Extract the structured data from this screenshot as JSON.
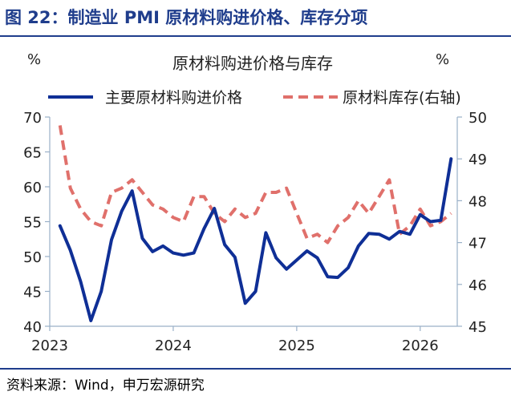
{
  "figure": {
    "title": "图 22：制造业 PMI 原材料购进价格、库存分项",
    "source": "资料来源：Wind，申万宏源研究"
  },
  "colors": {
    "title": "#1f3d8c",
    "series_price": "#0f2f96",
    "series_inventory": "#e0706b",
    "axis": "#9ab0c8",
    "text": "#222222"
  },
  "chart_data": {
    "type": "line",
    "title": "原材料购进价格与库存",
    "left_unit": "%",
    "right_unit": "%",
    "x_tick_labels": [
      "2023",
      "2024",
      "2025",
      "2026"
    ],
    "x_ticks": [
      2023,
      2024,
      2025,
      2026
    ],
    "xlim": [
      2023.0,
      2026.3
    ],
    "ylim_left": [
      40,
      70
    ],
    "yticks_left": [
      40,
      45,
      50,
      55,
      60,
      65,
      70
    ],
    "ylim_right": [
      45,
      50
    ],
    "yticks_right": [
      45,
      46,
      47,
      48,
      49,
      50
    ],
    "legend": [
      "主要原材料购进价格",
      "原材料库存(右轴)"
    ],
    "series": [
      {
        "name": "主要原材料购进价格",
        "axis": "left",
        "style": "solid",
        "x": [
          2023.083,
          2023.167,
          2023.25,
          2023.333,
          2023.417,
          2023.5,
          2023.583,
          2023.667,
          2023.75,
          2023.833,
          2023.917,
          2024.0,
          2024.083,
          2024.167,
          2024.25,
          2024.333,
          2024.417,
          2024.5,
          2024.583,
          2024.667,
          2024.75,
          2024.833,
          2024.917,
          2025.0,
          2025.083,
          2025.167,
          2025.25,
          2025.333,
          2025.417,
          2025.5,
          2025.583,
          2025.667,
          2025.75,
          2025.833,
          2025.917,
          2026.0,
          2026.083,
          2026.167,
          2026.25
        ],
        "values": [
          54.4,
          50.9,
          46.4,
          40.8,
          45.0,
          52.4,
          56.5,
          59.4,
          52.6,
          50.7,
          51.5,
          50.5,
          50.2,
          50.5,
          54.0,
          56.9,
          51.7,
          49.9,
          43.3,
          45.0,
          53.4,
          49.8,
          48.2,
          49.5,
          50.8,
          49.8,
          47.1,
          47.0,
          48.4,
          51.5,
          53.3,
          53.2,
          52.5,
          53.6,
          53.2,
          56.0,
          55.0,
          55.2,
          64.0
        ]
      },
      {
        "name": "原材料库存(右轴)",
        "axis": "right",
        "style": "dashed",
        "x": [
          2023.083,
          2023.167,
          2023.25,
          2023.333,
          2023.417,
          2023.5,
          2023.583,
          2023.667,
          2023.75,
          2023.833,
          2023.917,
          2024.0,
          2024.083,
          2024.167,
          2024.25,
          2024.333,
          2024.417,
          2024.5,
          2024.583,
          2024.667,
          2024.75,
          2024.833,
          2024.917,
          2025.0,
          2025.083,
          2025.167,
          2025.25,
          2025.333,
          2025.417,
          2025.5,
          2025.583,
          2025.667,
          2025.75,
          2025.833,
          2025.917,
          2026.0,
          2026.083,
          2026.167,
          2026.25
        ],
        "values": [
          49.8,
          48.3,
          47.8,
          47.5,
          47.4,
          48.2,
          48.3,
          48.5,
          48.2,
          47.9,
          47.8,
          47.6,
          47.5,
          48.1,
          48.1,
          47.7,
          47.5,
          47.8,
          47.6,
          47.7,
          48.2,
          48.2,
          48.3,
          47.7,
          47.1,
          47.2,
          47.0,
          47.4,
          47.6,
          48.0,
          47.7,
          48.1,
          48.5,
          47.2,
          47.4,
          47.8,
          47.4,
          47.5,
          47.7
        ]
      }
    ]
  }
}
